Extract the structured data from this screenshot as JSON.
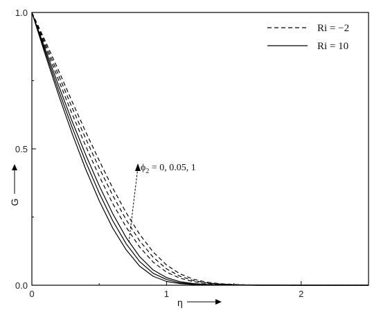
{
  "chart_data": {
    "type": "line",
    "title": "",
    "xlabel": "η",
    "ylabel": "G",
    "xlim": [
      0,
      2.5
    ],
    "ylim": [
      0,
      1.0
    ],
    "x_ticks": [
      {
        "value": 0,
        "label": "0"
      },
      {
        "value": 1,
        "label": "1"
      },
      {
        "value": 2,
        "label": "2"
      }
    ],
    "y_ticks": [
      {
        "value": 0,
        "label": "0.0"
      },
      {
        "value": 0.5,
        "label": "0.5"
      },
      {
        "value": 1,
        "label": "1.0"
      }
    ],
    "grid": false,
    "legend_position": "top-right",
    "legend": [
      {
        "label": "Ri = −2",
        "style": "dashed"
      },
      {
        "label": "Ri = 10",
        "style": "solid"
      }
    ],
    "annotation": {
      "phi_symbol": "ϕ",
      "phi_subscript": "2",
      "phi_values": " = 0, 0.05, 1"
    },
    "x": [
      0,
      0.1,
      0.2,
      0.3,
      0.4,
      0.5,
      0.6,
      0.7,
      0.8,
      0.9,
      1.0,
      1.1,
      1.2,
      1.3,
      1.4,
      1.5,
      1.6,
      1.7,
      1.8,
      2.0,
      2.2,
      2.5
    ],
    "series": [
      {
        "style": "solid",
        "values": [
          1.0,
          0.845,
          0.695,
          0.555,
          0.425,
          0.31,
          0.21,
          0.13,
          0.07,
          0.033,
          0.014,
          0.006,
          0.0025,
          0.0012,
          0.0006,
          0.0003,
          0.0002,
          0.0001,
          0.0001,
          0,
          0,
          0
        ]
      },
      {
        "style": "solid",
        "values": [
          1.0,
          0.855,
          0.712,
          0.578,
          0.452,
          0.338,
          0.237,
          0.152,
          0.087,
          0.044,
          0.021,
          0.009,
          0.004,
          0.002,
          0.0009,
          0.0004,
          0.0002,
          0.0001,
          0.0001,
          0,
          0,
          0
        ]
      },
      {
        "style": "solid",
        "values": [
          1.0,
          0.865,
          0.73,
          0.6,
          0.478,
          0.365,
          0.263,
          0.175,
          0.105,
          0.056,
          0.028,
          0.013,
          0.006,
          0.003,
          0.0013,
          0.0006,
          0.0003,
          0.0001,
          0.0001,
          0,
          0,
          0
        ]
      },
      {
        "style": "dashed",
        "values": [
          1.0,
          0.875,
          0.75,
          0.627,
          0.51,
          0.4,
          0.3,
          0.213,
          0.14,
          0.085,
          0.048,
          0.026,
          0.013,
          0.0065,
          0.0032,
          0.0016,
          0.0008,
          0.0004,
          0.0002,
          0,
          0,
          0
        ]
      },
      {
        "style": "dashed",
        "values": [
          1.0,
          0.885,
          0.768,
          0.65,
          0.537,
          0.43,
          0.33,
          0.24,
          0.163,
          0.103,
          0.06,
          0.033,
          0.017,
          0.0085,
          0.0042,
          0.002,
          0.001,
          0.0005,
          0.0002,
          0,
          0,
          0
        ]
      },
      {
        "style": "dashed",
        "values": [
          1.0,
          0.895,
          0.785,
          0.672,
          0.562,
          0.457,
          0.357,
          0.266,
          0.187,
          0.122,
          0.074,
          0.042,
          0.022,
          0.011,
          0.0055,
          0.0027,
          0.0013,
          0.0006,
          0.0003,
          0,
          0,
          0
        ]
      }
    ]
  }
}
